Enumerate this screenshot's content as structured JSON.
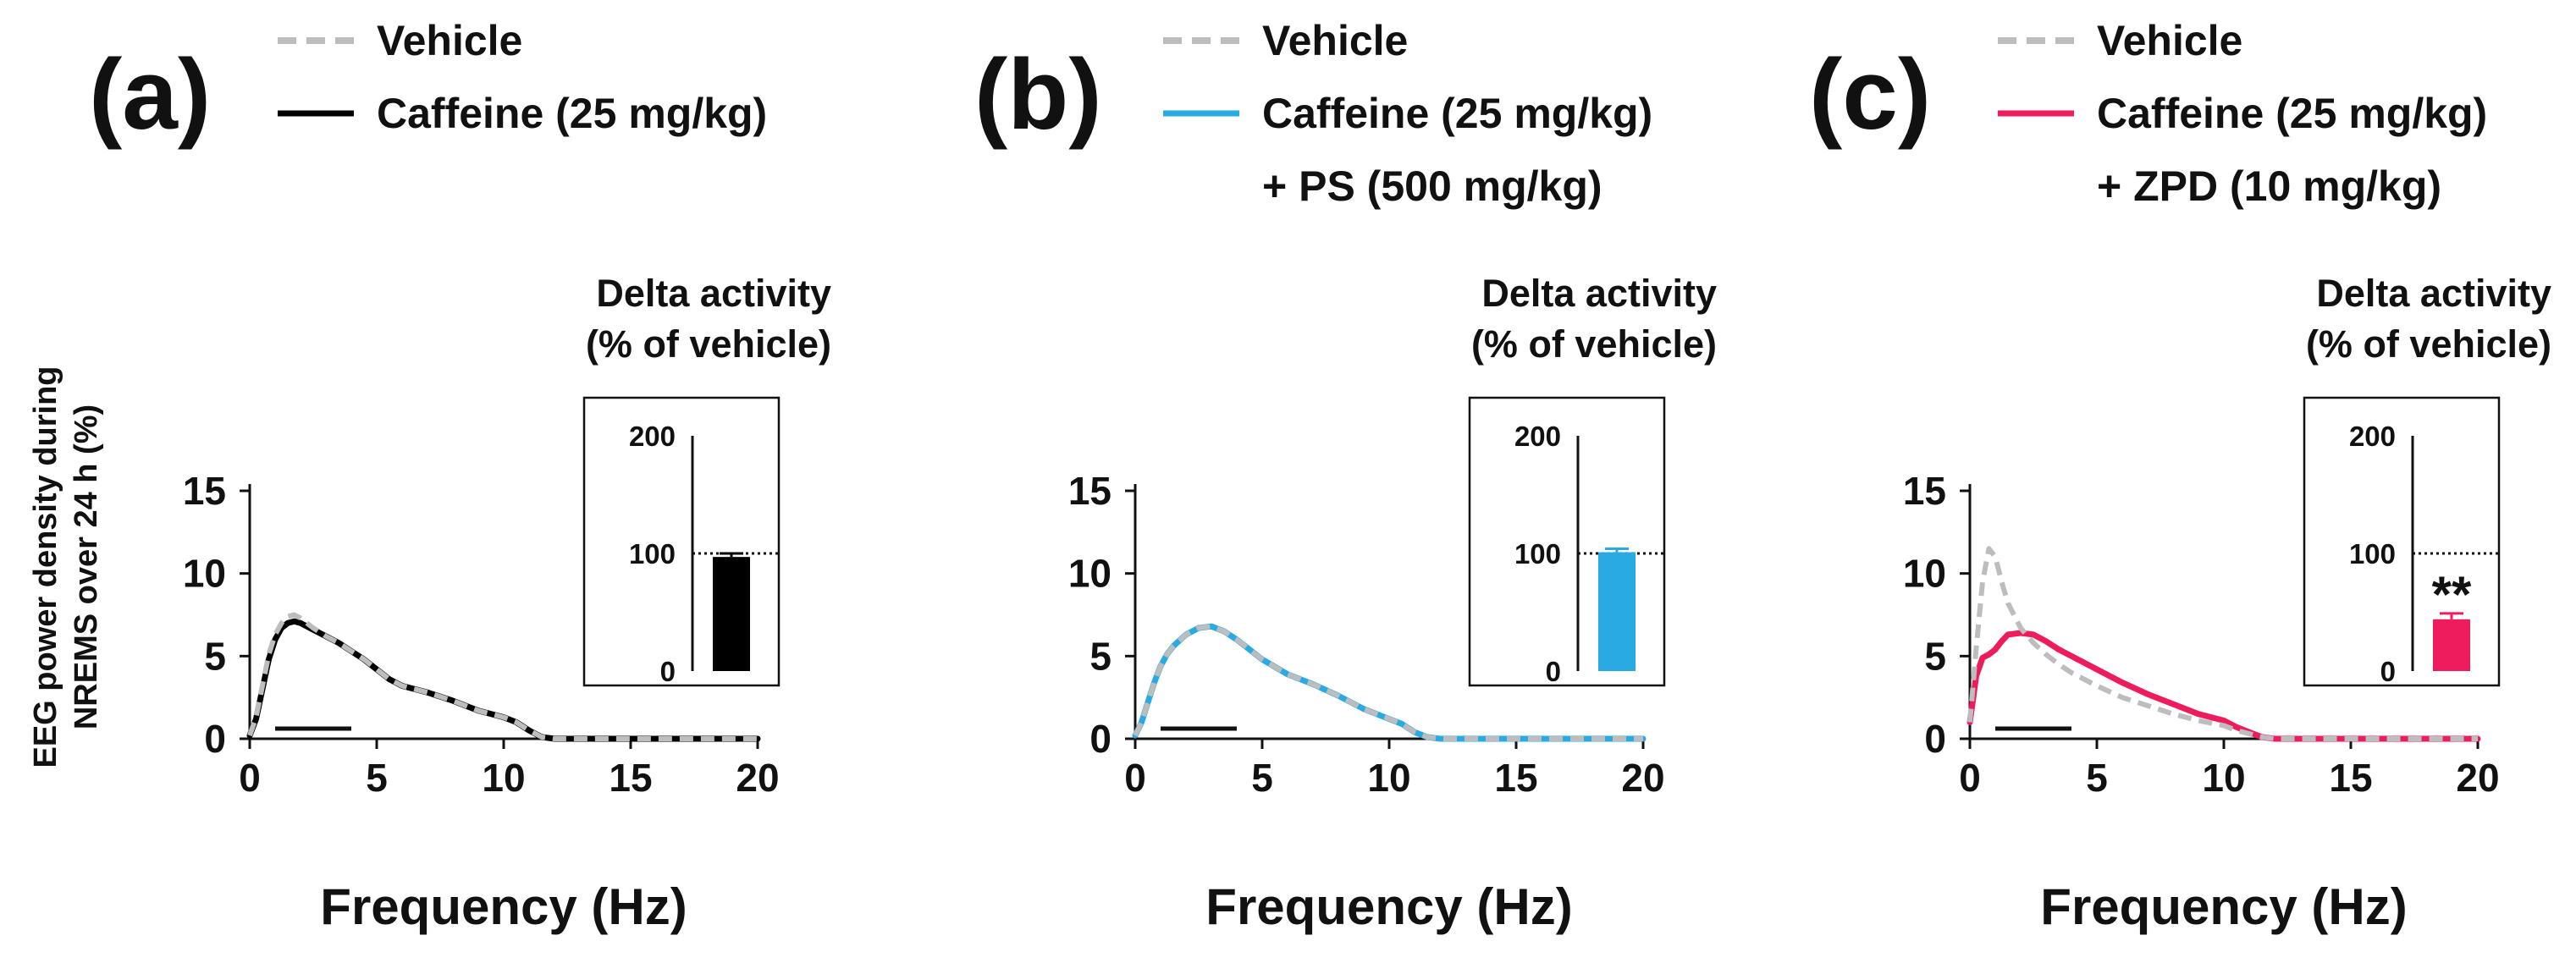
{
  "y_axis_label_line1": "EEG power density during",
  "y_axis_label_line2": "NREMS over 24 h (%)",
  "chart_data": [
    {
      "type": "line",
      "panel_label": "(a)",
      "legend": [
        {
          "label": "Vehicle",
          "color": "#bdbdbd",
          "style": "dashed"
        },
        {
          "label": "Caffeine (25 mg/kg)",
          "color": "#000000",
          "style": "solid"
        }
      ],
      "xlabel": "Frequency (Hz)",
      "xlim": [
        0,
        20
      ],
      "ylim": [
        0,
        15
      ],
      "xticks": [
        0,
        5,
        10,
        15,
        20
      ],
      "yticks": [
        0,
        5,
        10,
        15
      ],
      "delta_band": [
        1,
        4
      ],
      "series": [
        {
          "name": "Vehicle",
          "color": "#bdbdbd",
          "style": "dashed",
          "x": [
            0,
            0.25,
            0.5,
            0.75,
            1,
            1.25,
            1.5,
            1.75,
            2,
            2.5,
            3,
            3.5,
            4,
            4.5,
            5,
            5.5,
            6,
            7,
            8,
            9,
            10,
            10.5,
            11,
            11.5,
            12,
            14,
            16,
            18,
            20
          ],
          "values": [
            0.2,
            1.3,
            3.2,
            5.1,
            6.3,
            7.0,
            7.4,
            7.5,
            7.3,
            6.7,
            6.2,
            5.8,
            5.3,
            4.8,
            4.2,
            3.6,
            3.2,
            2.8,
            2.3,
            1.7,
            1.3,
            1.0,
            0.5,
            0.1,
            0.0,
            0.0,
            0.0,
            0.0,
            0.0
          ]
        },
        {
          "name": "Caffeine (25 mg/kg)",
          "color": "#000000",
          "style": "solid",
          "x": [
            0,
            0.25,
            0.5,
            0.75,
            1,
            1.25,
            1.5,
            1.75,
            2,
            2.5,
            3,
            3.5,
            4,
            4.5,
            5,
            5.5,
            6,
            7,
            8,
            9,
            10,
            10.5,
            11,
            11.5,
            12,
            14,
            16,
            18,
            20
          ],
          "values": [
            0.2,
            1.2,
            3.0,
            4.8,
            6.0,
            6.7,
            7.0,
            7.1,
            7.0,
            6.6,
            6.2,
            5.8,
            5.3,
            4.8,
            4.2,
            3.6,
            3.2,
            2.8,
            2.3,
            1.7,
            1.3,
            1.0,
            0.5,
            0.1,
            0.0,
            0.0,
            0.0,
            0.0,
            0.0
          ]
        }
      ],
      "inset": {
        "title_line1": "Delta activity",
        "title_line2": "(% of vehicle)",
        "ylim": [
          0,
          200
        ],
        "yticks": [
          0,
          100,
          200
        ],
        "reference_line": 100,
        "value": 97,
        "error": 3,
        "color": "#000000",
        "significance": ""
      }
    },
    {
      "type": "line",
      "panel_label": "(b)",
      "legend": [
        {
          "label": "Vehicle",
          "color": "#bdbdbd",
          "style": "dashed"
        },
        {
          "label": "Caffeine (25 mg/kg)",
          "color": "#29aae2",
          "style": "solid"
        },
        {
          "label": "+ PS (500 mg/kg)",
          "color": "",
          "style": "none"
        }
      ],
      "xlabel": "Frequency (Hz)",
      "xlim": [
        0,
        20
      ],
      "ylim": [
        0,
        15
      ],
      "xticks": [
        0,
        5,
        10,
        15,
        20
      ],
      "yticks": [
        0,
        5,
        10,
        15
      ],
      "delta_band": [
        1,
        4
      ],
      "series": [
        {
          "name": "Vehicle",
          "color": "#bdbdbd",
          "style": "dashed",
          "x": [
            0,
            0.25,
            0.5,
            0.75,
            1,
            1.25,
            1.5,
            2,
            2.5,
            3,
            3.5,
            4,
            4.5,
            5,
            6,
            7,
            8,
            9,
            10,
            10.5,
            11,
            11.5,
            12,
            14,
            16,
            18,
            20
          ],
          "values": [
            0.2,
            1.0,
            2.2,
            3.4,
            4.4,
            5.1,
            5.6,
            6.3,
            6.7,
            6.8,
            6.5,
            6.0,
            5.4,
            4.8,
            3.9,
            3.3,
            2.6,
            1.8,
            1.2,
            0.9,
            0.4,
            0.1,
            0.0,
            0.0,
            0.0,
            0.0,
            0.0
          ]
        },
        {
          "name": "Caffeine (25 mg/kg) + PS (500 mg/kg)",
          "color": "#29aae2",
          "style": "solid",
          "x": [
            0,
            0.25,
            0.5,
            0.75,
            1,
            1.25,
            1.5,
            2,
            2.5,
            3,
            3.5,
            4,
            4.5,
            5,
            6,
            7,
            8,
            9,
            10,
            10.5,
            11,
            11.5,
            12,
            14,
            16,
            18,
            20
          ],
          "values": [
            0.2,
            1.0,
            2.2,
            3.4,
            4.4,
            5.1,
            5.6,
            6.3,
            6.7,
            6.8,
            6.5,
            6.0,
            5.4,
            4.8,
            3.9,
            3.3,
            2.6,
            1.8,
            1.2,
            0.9,
            0.4,
            0.1,
            0.0,
            0.0,
            0.0,
            0.0,
            0.0
          ]
        }
      ],
      "inset": {
        "title_line1": "Delta activity",
        "title_line2": "(% of vehicle)",
        "ylim": [
          0,
          200
        ],
        "yticks": [
          0,
          100,
          200
        ],
        "reference_line": 100,
        "value": 101,
        "error": 3,
        "color": "#29aae2",
        "significance": ""
      }
    },
    {
      "type": "line",
      "panel_label": "(c)",
      "legend": [
        {
          "label": "Vehicle",
          "color": "#bdbdbd",
          "style": "dashed"
        },
        {
          "label": "Caffeine (25 mg/kg)",
          "color": "#ee1c5c",
          "style": "solid"
        },
        {
          "label": "+ ZPD (10 mg/kg)",
          "color": "",
          "style": "none"
        }
      ],
      "xlabel": "Frequency (Hz)",
      "xlim": [
        0,
        20
      ],
      "ylim": [
        0,
        15
      ],
      "xticks": [
        0,
        5,
        10,
        15,
        20
      ],
      "yticks": [
        0,
        5,
        10,
        15
      ],
      "delta_band": [
        1,
        4
      ],
      "series": [
        {
          "name": "Vehicle",
          "color": "#bdbdbd",
          "style": "dashed",
          "x": [
            0,
            0.25,
            0.5,
            0.75,
            1,
            1.25,
            1.5,
            2,
            2.5,
            3,
            3.5,
            4,
            5,
            6,
            7,
            8,
            9,
            10,
            10.5,
            11,
            11.5,
            12,
            14,
            16,
            18,
            20
          ],
          "values": [
            1.0,
            5.5,
            9.5,
            11.5,
            11.0,
            9.5,
            8.2,
            6.7,
            5.8,
            5.1,
            4.5,
            4.0,
            3.2,
            2.5,
            2.0,
            1.5,
            1.1,
            0.8,
            0.5,
            0.3,
            0.1,
            0.0,
            0.0,
            0.0,
            0.0,
            0.0
          ]
        },
        {
          "name": "Caffeine (25 mg/kg) + ZPD (10 mg/kg)",
          "color": "#ee1c5c",
          "style": "solid",
          "x": [
            0,
            0.25,
            0.5,
            0.75,
            1,
            1.25,
            1.5,
            2,
            2.5,
            3,
            3.5,
            4,
            5,
            6,
            7,
            8,
            9,
            10,
            10.5,
            11,
            11.5,
            12,
            14,
            16,
            18,
            20
          ],
          "values": [
            1.0,
            3.8,
            4.9,
            5.1,
            5.4,
            5.9,
            6.3,
            6.4,
            6.3,
            5.9,
            5.4,
            5.0,
            4.2,
            3.4,
            2.7,
            2.1,
            1.5,
            1.1,
            0.7,
            0.4,
            0.1,
            0.0,
            0.0,
            0.0,
            0.0,
            0.0
          ]
        }
      ],
      "inset": {
        "title_line1": "Delta activity",
        "title_line2": "(% of vehicle)",
        "ylim": [
          0,
          200
        ],
        "yticks": [
          0,
          100,
          200
        ],
        "reference_line": 100,
        "value": 44,
        "error": 5,
        "color": "#ee1c5c",
        "significance": "**"
      }
    }
  ]
}
